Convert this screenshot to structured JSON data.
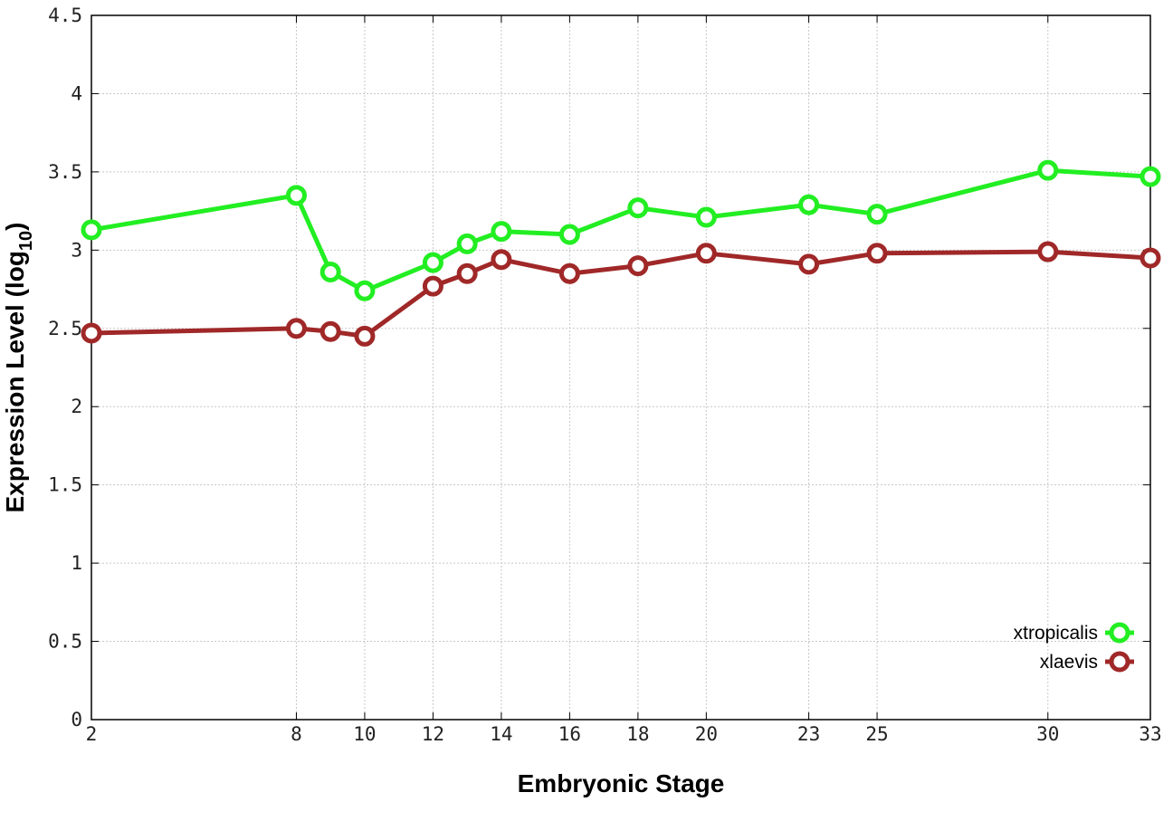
{
  "chart_data": {
    "type": "line",
    "xlabel": "Embryonic Stage",
    "ylabel": "Expression Level (log",
    "ylabel_subscript": "10",
    "ylabel_close": ")",
    "x": [
      2,
      8,
      9,
      10,
      12,
      13,
      14,
      16,
      18,
      20,
      23,
      25,
      30,
      33
    ],
    "xticks": [
      "2",
      "8",
      "10",
      "12",
      "14",
      "16",
      "18",
      "20",
      "23",
      "25",
      "30",
      "33"
    ],
    "xtick_values": [
      2,
      8,
      10,
      12,
      14,
      16,
      18,
      20,
      23,
      25,
      30,
      33
    ],
    "yticks": [
      "0",
      "0.5",
      "1",
      "1.5",
      "2",
      "2.5",
      "3",
      "3.5",
      "4",
      "4.5"
    ],
    "ytick_values": [
      0,
      0.5,
      1,
      1.5,
      2,
      2.5,
      3,
      3.5,
      4,
      4.5
    ],
    "xlim": [
      2,
      33
    ],
    "ylim": [
      0,
      4.5
    ],
    "grid": true,
    "legend_position": "bottom-right",
    "series": [
      {
        "name": "xtropicalis",
        "color": "#22ee22",
        "values": [
          3.13,
          3.35,
          2.86,
          2.74,
          2.92,
          3.04,
          3.12,
          3.1,
          3.27,
          3.21,
          3.29,
          3.23,
          3.51,
          3.47
        ]
      },
      {
        "name": "xlaevis",
        "color": "#a02828",
        "values": [
          2.47,
          2.5,
          2.48,
          2.45,
          2.77,
          2.85,
          2.94,
          2.85,
          2.9,
          2.98,
          2.91,
          2.98,
          2.99,
          2.95
        ]
      }
    ]
  }
}
